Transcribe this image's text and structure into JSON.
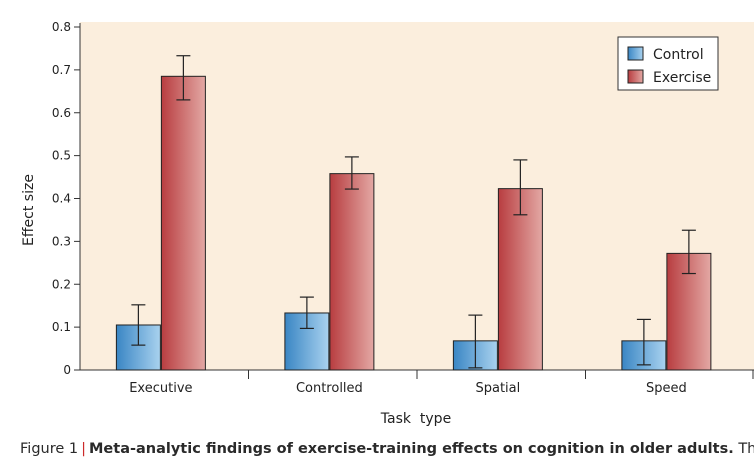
{
  "chart_data": {
    "type": "bar",
    "title": "",
    "xlabel": "Task  type",
    "ylabel": "Effect size",
    "categories": [
      "Executive",
      "Controlled",
      "Spatial",
      "Speed"
    ],
    "series": [
      {
        "name": "Control",
        "values": [
          0.105,
          0.133,
          0.068,
          0.068
        ],
        "error_low": [
          0.058,
          0.097,
          0.005,
          0.012
        ],
        "error_high": [
          0.152,
          0.17,
          0.128,
          0.118
        ],
        "color": "#3f94d0"
      },
      {
        "name": "Exercise",
        "values": [
          0.685,
          0.458,
          0.423,
          0.272
        ],
        "error_low": [
          0.63,
          0.422,
          0.362,
          0.225
        ],
        "error_high": [
          0.733,
          0.497,
          0.49,
          0.326
        ],
        "color": "#c0484a"
      }
    ],
    "yticks": [
      "0",
      "0.1",
      "0.2",
      "0.3",
      "0.4",
      "0.5",
      "0.6",
      "0.7",
      "0.8"
    ],
    "ylim": [
      0,
      0.8
    ],
    "grid": false,
    "legend_position": "top-right",
    "plot_background": "#fbeedd"
  },
  "caption": {
    "prefix": "Figure 1",
    "separator": "|",
    "title": "Meta-analytic findings of exercise-training effects on cognition in older adults.",
    "tail": "The"
  }
}
